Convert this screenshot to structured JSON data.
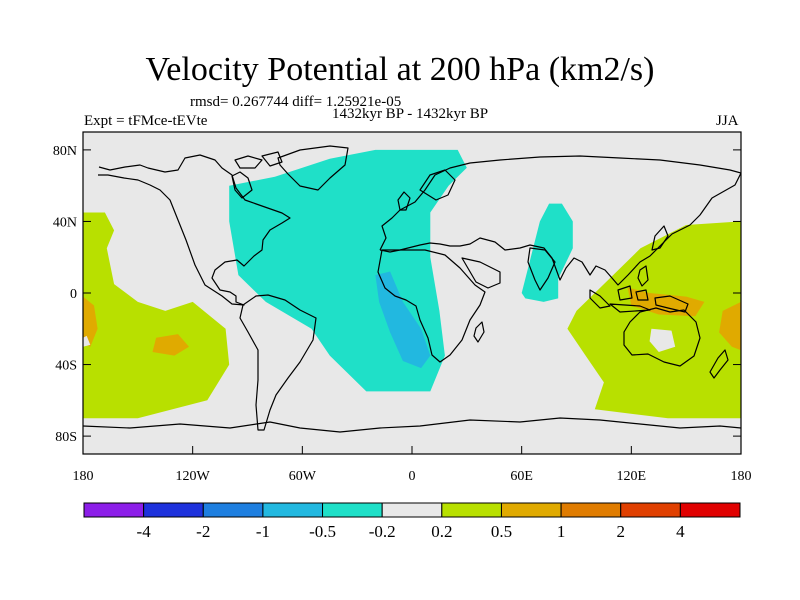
{
  "map": {
    "title": "Velocity Potential at 200 hPa (km2/s)",
    "stats": "rmsd= 0.267744 diff= 1.25921e-05",
    "subtitle": "1432kyr BP - 1432kyr BP",
    "experiment": "Expt = tFMce-tEVte",
    "season": "JJA",
    "projection": "cylindrical equidistant",
    "background_color": "#e8e8e8",
    "coastline_color": "#000000",
    "lat_ticks": [
      {
        "label": "80N",
        "lat": 80
      },
      {
        "label": "40N",
        "lat": 40
      },
      {
        "label": "0",
        "lat": 0
      },
      {
        "label": "40S",
        "lat": -40
      },
      {
        "label": "80S",
        "lat": -80
      }
    ],
    "lon_ticks": [
      {
        "label": "180",
        "lon": -180
      },
      {
        "label": "120W",
        "lon": -120
      },
      {
        "label": "60W",
        "lon": -60
      },
      {
        "label": "0",
        "lon": 0
      },
      {
        "label": "60E",
        "lon": 60
      },
      {
        "label": "120E",
        "lon": 120
      },
      {
        "label": "180",
        "lon": 180
      }
    ],
    "regions": [
      {
        "name": "north-atlantic-negative",
        "level": "-0.5 to -0.2",
        "color": "#1fe0c8",
        "pts": [
          [
            -100,
            60
          ],
          [
            -75,
            65
          ],
          [
            -45,
            75
          ],
          [
            -20,
            80
          ],
          [
            25,
            80
          ],
          [
            30,
            70
          ],
          [
            20,
            60
          ],
          [
            10,
            45
          ],
          [
            10,
            20
          ],
          [
            15,
            -10
          ],
          [
            18,
            -35
          ],
          [
            10,
            -55
          ],
          [
            -25,
            -55
          ],
          [
            -45,
            -35
          ],
          [
            -55,
            -20
          ],
          [
            -80,
            -5
          ],
          [
            -95,
            10
          ],
          [
            -100,
            40
          ]
        ]
      },
      {
        "name": "south-atlantic-core",
        "level": "-1 to -0.5",
        "color": "#22b8e0",
        "pts": [
          [
            -20,
            10
          ],
          [
            -12,
            12
          ],
          [
            -5,
            -5
          ],
          [
            5,
            -20
          ],
          [
            10,
            -35
          ],
          [
            5,
            -42
          ],
          [
            -5,
            -38
          ],
          [
            -12,
            -22
          ],
          [
            -18,
            -5
          ]
        ]
      },
      {
        "name": "indian-ocean-negative",
        "level": "-0.5 to -0.2",
        "color": "#1fe0c8",
        "pts": [
          [
            60,
            0
          ],
          [
            65,
            20
          ],
          [
            70,
            40
          ],
          [
            75,
            50
          ],
          [
            82,
            50
          ],
          [
            88,
            40
          ],
          [
            88,
            25
          ],
          [
            80,
            8
          ],
          [
            80,
            -3
          ],
          [
            72,
            -5
          ],
          [
            62,
            -3
          ]
        ]
      },
      {
        "name": "west-pacific-positive",
        "level": "0.2 to 0.5",
        "color": "#b8e000",
        "pts": [
          [
            -180,
            45
          ],
          [
            -168,
            45
          ],
          [
            -163,
            35
          ],
          [
            -167,
            25
          ],
          [
            -163,
            5
          ],
          [
            -150,
            -5
          ],
          [
            -135,
            -10
          ],
          [
            -120,
            -5
          ],
          [
            -102,
            -20
          ],
          [
            -100,
            -40
          ],
          [
            -112,
            -60
          ],
          [
            -150,
            -70
          ],
          [
            -180,
            -70
          ]
        ]
      },
      {
        "name": "west-pacific-positive-core",
        "level": "0.5 to 1",
        "color": "#e0aa00",
        "pts": [
          [
            -180,
            -2
          ],
          [
            -174,
            -7
          ],
          [
            -172,
            -20
          ],
          [
            -176,
            -30
          ],
          [
            -180,
            -28
          ]
        ]
      },
      {
        "name": "south-pacific-positive-core",
        "level": "0.5 to 1",
        "color": "#e0aa00",
        "pts": [
          [
            -140,
            -25
          ],
          [
            -128,
            -23
          ],
          [
            -122,
            -30
          ],
          [
            -130,
            -35
          ],
          [
            -142,
            -33
          ]
        ]
      },
      {
        "name": "east-pacific-positive",
        "level": "0.2 to 0.5",
        "color": "#b8e000",
        "pts": [
          [
            180,
            40
          ],
          [
            150,
            38
          ],
          [
            125,
            25
          ],
          [
            115,
            15
          ],
          [
            100,
            0
          ],
          [
            90,
            -10
          ],
          [
            85,
            -20
          ],
          [
            95,
            -35
          ],
          [
            105,
            -50
          ],
          [
            100,
            -65
          ],
          [
            140,
            -70
          ],
          [
            180,
            -70
          ]
        ]
      },
      {
        "name": "maritime-positive-core",
        "level": "0.5 to 1",
        "color": "#e0aa00",
        "pts": [
          [
            118,
            3
          ],
          [
            130,
            0
          ],
          [
            150,
            -2
          ],
          [
            160,
            -5
          ],
          [
            155,
            -13
          ],
          [
            135,
            -12
          ],
          [
            120,
            -7
          ]
        ]
      },
      {
        "name": "dateline-positive-core",
        "level": "0.5 to 1",
        "color": "#e0aa00",
        "pts": [
          [
            180,
            -5
          ],
          [
            170,
            -10
          ],
          [
            168,
            -22
          ],
          [
            175,
            -30
          ],
          [
            180,
            -32
          ]
        ]
      }
    ],
    "holes": [
      {
        "name": "australia-interior-gap",
        "pts": [
          [
            131,
            -20
          ],
          [
            142,
            -21
          ],
          [
            144,
            -30
          ],
          [
            135,
            -33
          ],
          [
            130,
            -27
          ]
        ]
      },
      {
        "name": "pacific-island-gap",
        "pts": [
          [
            -180,
            -25
          ],
          [
            -178,
            -24
          ],
          [
            -176,
            -29
          ],
          [
            -180,
            -30
          ]
        ]
      }
    ]
  },
  "colorbar": {
    "colors": [
      "#8c1ee8",
      "#1e32dc",
      "#1e7fe0",
      "#22b8e0",
      "#1fe0c8",
      "#e8e8e8",
      "#b8e000",
      "#e0aa00",
      "#e07c00",
      "#e04000",
      "#e00000"
    ],
    "labels": [
      "-4",
      "-2",
      "-1",
      "-0.5",
      "-0.2",
      "0.2",
      "0.5",
      "1",
      "2",
      "4"
    ]
  }
}
